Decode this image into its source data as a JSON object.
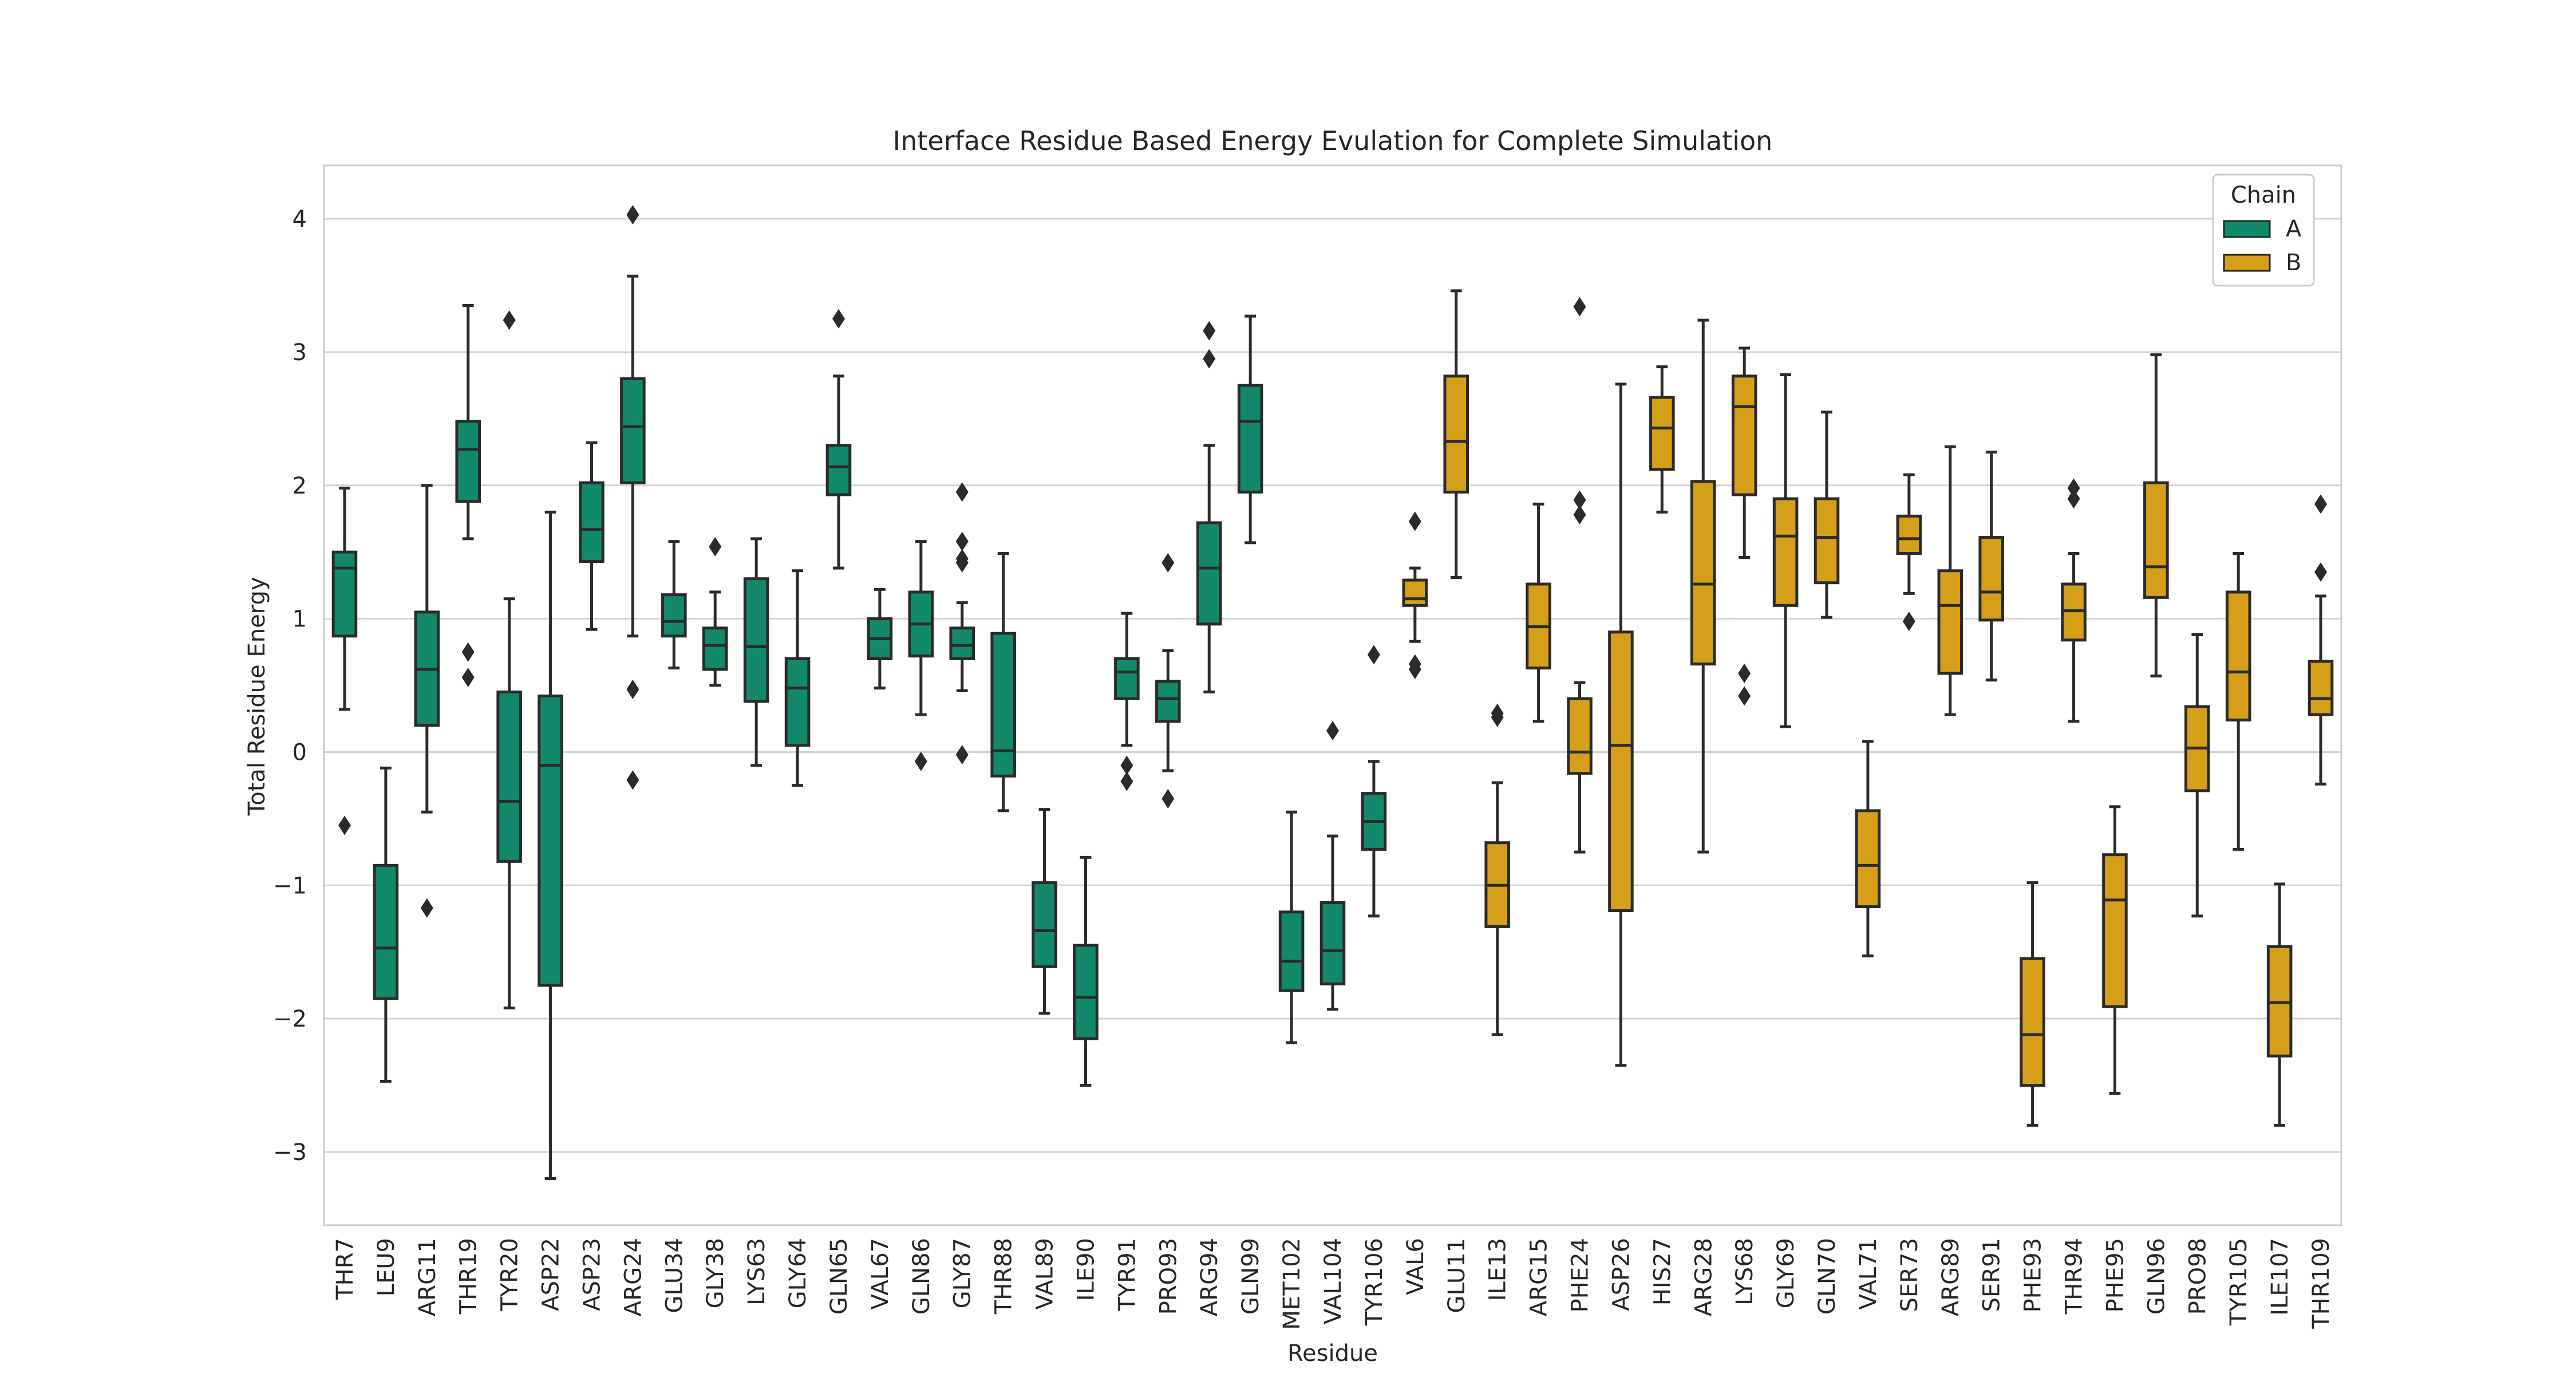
{
  "chart_data": {
    "type": "boxplot",
    "title": "Interface Residue Based Energy Evulation for Complete Simulation",
    "xlabel": "Residue",
    "ylabel": "Total Residue Energy",
    "ylim": [
      -3.55,
      4.4
    ],
    "yticks": [
      -3,
      -2,
      -1,
      0,
      1,
      2,
      3,
      4
    ],
    "grid": "horizontal",
    "legend": {
      "title": "Chain",
      "position": "top-right",
      "entries": [
        {
          "label": "A",
          "color": "#11896a"
        },
        {
          "label": "B",
          "color": "#d59f1a"
        }
      ]
    },
    "series": [
      {
        "name": "A",
        "color": "#11896a"
      },
      {
        "name": "B",
        "color": "#d59f1a"
      }
    ],
    "categories": [
      "THR7",
      "LEU9",
      "ARG11",
      "THR19",
      "TYR20",
      "ASP22",
      "ASP23",
      "ARG24",
      "GLU34",
      "GLY38",
      "LYS63",
      "GLY64",
      "GLN65",
      "VAL67",
      "GLN86",
      "GLY87",
      "THR88",
      "VAL89",
      "ILE90",
      "TYR91",
      "PRO93",
      "ARG94",
      "GLN99",
      "MET102",
      "VAL104",
      "TYR106",
      "VAL6",
      "GLU11",
      "ILE13",
      "ARG15",
      "PHE24",
      "ASP26",
      "HIS27",
      "ARG28",
      "LYS68",
      "GLY69",
      "GLN70",
      "VAL71",
      "SER73",
      "ARG89",
      "SER91",
      "PHE93",
      "THR94",
      "PHE95",
      "GLN96",
      "PRO98",
      "TYR105",
      "ILE107",
      "THR109"
    ],
    "boxes": [
      {
        "residue": "THR7",
        "chain": "A",
        "whislo": 0.32,
        "q1": 0.87,
        "med": 1.38,
        "q3": 1.5,
        "whishi": 1.98,
        "fliers": [
          -0.55
        ]
      },
      {
        "residue": "LEU9",
        "chain": "A",
        "whislo": -2.47,
        "q1": -1.85,
        "med": -1.47,
        "q3": -0.85,
        "whishi": -0.12,
        "fliers": []
      },
      {
        "residue": "ARG11",
        "chain": "A",
        "whislo": -0.45,
        "q1": 0.2,
        "med": 0.62,
        "q3": 1.05,
        "whishi": 2.0,
        "fliers": [
          -1.17
        ]
      },
      {
        "residue": "THR19",
        "chain": "A",
        "whislo": 1.6,
        "q1": 1.88,
        "med": 2.27,
        "q3": 2.48,
        "whishi": 3.35,
        "fliers": [
          0.75,
          0.56
        ]
      },
      {
        "residue": "TYR20",
        "chain": "A",
        "whislo": -1.92,
        "q1": -0.82,
        "med": -0.37,
        "q3": 0.45,
        "whishi": 1.15,
        "fliers": [
          3.24
        ]
      },
      {
        "residue": "ASP22",
        "chain": "A",
        "whislo": -3.2,
        "q1": -1.75,
        "med": -0.1,
        "q3": 0.42,
        "whishi": 1.8,
        "fliers": []
      },
      {
        "residue": "ASP23",
        "chain": "A",
        "whislo": 0.92,
        "q1": 1.43,
        "med": 1.67,
        "q3": 2.02,
        "whishi": 2.32,
        "fliers": []
      },
      {
        "residue": "ARG24",
        "chain": "A",
        "whislo": 0.87,
        "q1": 2.02,
        "med": 2.44,
        "q3": 2.8,
        "whishi": 3.57,
        "fliers": [
          4.03,
          0.47,
          -0.21
        ]
      },
      {
        "residue": "GLU34",
        "chain": "A",
        "whislo": 0.63,
        "q1": 0.87,
        "med": 0.98,
        "q3": 1.18,
        "whishi": 1.58,
        "fliers": []
      },
      {
        "residue": "GLY38",
        "chain": "A",
        "whislo": 0.5,
        "q1": 0.62,
        "med": 0.8,
        "q3": 0.93,
        "whishi": 1.2,
        "fliers": [
          1.54
        ]
      },
      {
        "residue": "LYS63",
        "chain": "A",
        "whislo": -0.1,
        "q1": 0.38,
        "med": 0.79,
        "q3": 1.3,
        "whishi": 1.6,
        "fliers": []
      },
      {
        "residue": "GLY64",
        "chain": "A",
        "whislo": -0.25,
        "q1": 0.05,
        "med": 0.48,
        "q3": 0.7,
        "whishi": 1.36,
        "fliers": []
      },
      {
        "residue": "GLN65",
        "chain": "A",
        "whislo": 1.38,
        "q1": 1.93,
        "med": 2.14,
        "q3": 2.3,
        "whishi": 2.82,
        "fliers": [
          3.25
        ]
      },
      {
        "residue": "VAL67",
        "chain": "A",
        "whislo": 0.48,
        "q1": 0.7,
        "med": 0.85,
        "q3": 1.0,
        "whishi": 1.22,
        "fliers": []
      },
      {
        "residue": "GLN86",
        "chain": "A",
        "whislo": 0.28,
        "q1": 0.72,
        "med": 0.96,
        "q3": 1.2,
        "whishi": 1.58,
        "fliers": [
          -0.07
        ]
      },
      {
        "residue": "GLY87",
        "chain": "A",
        "whislo": 0.46,
        "q1": 0.7,
        "med": 0.8,
        "q3": 0.93,
        "whishi": 1.12,
        "fliers": [
          1.95,
          1.58,
          1.45,
          1.42,
          -0.02
        ]
      },
      {
        "residue": "THR88",
        "chain": "A",
        "whislo": -0.44,
        "q1": -0.18,
        "med": 0.01,
        "q3": 0.89,
        "whishi": 1.49,
        "fliers": []
      },
      {
        "residue": "VAL89",
        "chain": "A",
        "whislo": -1.96,
        "q1": -1.61,
        "med": -1.34,
        "q3": -0.98,
        "whishi": -0.43,
        "fliers": []
      },
      {
        "residue": "ILE90",
        "chain": "A",
        "whislo": -2.5,
        "q1": -2.15,
        "med": -1.84,
        "q3": -1.45,
        "whishi": -0.79,
        "fliers": []
      },
      {
        "residue": "TYR91",
        "chain": "A",
        "whislo": 0.05,
        "q1": 0.4,
        "med": 0.6,
        "q3": 0.7,
        "whishi": 1.04,
        "fliers": [
          -0.1,
          -0.22
        ]
      },
      {
        "residue": "PRO93",
        "chain": "A",
        "whislo": -0.14,
        "q1": 0.23,
        "med": 0.4,
        "q3": 0.53,
        "whishi": 0.76,
        "fliers": [
          1.42,
          -0.35
        ]
      },
      {
        "residue": "ARG94",
        "chain": "A",
        "whislo": 0.45,
        "q1": 0.96,
        "med": 1.38,
        "q3": 1.72,
        "whishi": 2.3,
        "fliers": [
          3.16,
          2.95
        ]
      },
      {
        "residue": "GLN99",
        "chain": "A",
        "whislo": 1.57,
        "q1": 1.95,
        "med": 2.48,
        "q3": 2.75,
        "whishi": 3.27,
        "fliers": []
      },
      {
        "residue": "MET102",
        "chain": "A",
        "whislo": -2.18,
        "q1": -1.79,
        "med": -1.57,
        "q3": -1.2,
        "whishi": -0.45,
        "fliers": []
      },
      {
        "residue": "VAL104",
        "chain": "A",
        "whislo": -1.93,
        "q1": -1.74,
        "med": -1.49,
        "q3": -1.13,
        "whishi": -0.63,
        "fliers": [
          0.16
        ]
      },
      {
        "residue": "TYR106",
        "chain": "A",
        "whislo": -1.23,
        "q1": -0.73,
        "med": -0.52,
        "q3": -0.31,
        "whishi": -0.07,
        "fliers": [
          0.73
        ]
      },
      {
        "residue": "VAL6",
        "chain": "B",
        "whislo": 0.83,
        "q1": 1.1,
        "med": 1.15,
        "q3": 1.29,
        "whishi": 1.38,
        "fliers": [
          1.73,
          0.66,
          0.62
        ]
      },
      {
        "residue": "GLU11",
        "chain": "B",
        "whislo": 1.31,
        "q1": 1.95,
        "med": 2.33,
        "q3": 2.82,
        "whishi": 3.46,
        "fliers": []
      },
      {
        "residue": "ILE13",
        "chain": "B",
        "whislo": -2.12,
        "q1": -1.31,
        "med": -1.0,
        "q3": -0.68,
        "whishi": -0.23,
        "fliers": [
          0.29,
          0.26
        ]
      },
      {
        "residue": "ARG15",
        "chain": "B",
        "whislo": 0.23,
        "q1": 0.63,
        "med": 0.94,
        "q3": 1.26,
        "whishi": 1.86,
        "fliers": []
      },
      {
        "residue": "PHE24",
        "chain": "B",
        "whislo": -0.75,
        "q1": -0.16,
        "med": 0.0,
        "q3": 0.4,
        "whishi": 0.52,
        "fliers": [
          3.34,
          1.89,
          1.78
        ]
      },
      {
        "residue": "ASP26",
        "chain": "B",
        "whislo": -2.35,
        "q1": -1.19,
        "med": 0.05,
        "q3": 0.9,
        "whishi": 2.76,
        "fliers": []
      },
      {
        "residue": "HIS27",
        "chain": "B",
        "whislo": 1.8,
        "q1": 2.12,
        "med": 2.43,
        "q3": 2.66,
        "whishi": 2.89,
        "fliers": []
      },
      {
        "residue": "ARG28",
        "chain": "B",
        "whislo": -0.75,
        "q1": 0.66,
        "med": 1.26,
        "q3": 2.03,
        "whishi": 3.24,
        "fliers": []
      },
      {
        "residue": "LYS68",
        "chain": "B",
        "whislo": 1.46,
        "q1": 1.93,
        "med": 2.59,
        "q3": 2.82,
        "whishi": 3.03,
        "fliers": [
          0.59,
          0.42
        ]
      },
      {
        "residue": "GLY69",
        "chain": "B",
        "whislo": 0.19,
        "q1": 1.1,
        "med": 1.62,
        "q3": 1.9,
        "whishi": 2.83,
        "fliers": []
      },
      {
        "residue": "GLN70",
        "chain": "B",
        "whislo": 1.01,
        "q1": 1.27,
        "med": 1.61,
        "q3": 1.9,
        "whishi": 2.55,
        "fliers": []
      },
      {
        "residue": "VAL71",
        "chain": "B",
        "whislo": -1.53,
        "q1": -1.16,
        "med": -0.85,
        "q3": -0.44,
        "whishi": 0.08,
        "fliers": []
      },
      {
        "residue": "SER73",
        "chain": "B",
        "whislo": 1.19,
        "q1": 1.49,
        "med": 1.6,
        "q3": 1.77,
        "whishi": 2.08,
        "fliers": [
          0.98
        ]
      },
      {
        "residue": "ARG89",
        "chain": "B",
        "whislo": 0.28,
        "q1": 0.59,
        "med": 1.1,
        "q3": 1.36,
        "whishi": 2.29,
        "fliers": []
      },
      {
        "residue": "SER91",
        "chain": "B",
        "whislo": 0.54,
        "q1": 0.99,
        "med": 1.2,
        "q3": 1.61,
        "whishi": 2.25,
        "fliers": []
      },
      {
        "residue": "PHE93",
        "chain": "B",
        "whislo": -2.8,
        "q1": -2.5,
        "med": -2.12,
        "q3": -1.55,
        "whishi": -0.98,
        "fliers": []
      },
      {
        "residue": "THR94",
        "chain": "B",
        "whislo": 0.23,
        "q1": 0.84,
        "med": 1.06,
        "q3": 1.26,
        "whishi": 1.49,
        "fliers": [
          1.98,
          1.9
        ]
      },
      {
        "residue": "PHE95",
        "chain": "B",
        "whislo": -2.56,
        "q1": -1.91,
        "med": -1.11,
        "q3": -0.77,
        "whishi": -0.41,
        "fliers": []
      },
      {
        "residue": "GLN96",
        "chain": "B",
        "whislo": 0.57,
        "q1": 1.16,
        "med": 1.39,
        "q3": 2.02,
        "whishi": 2.98,
        "fliers": []
      },
      {
        "residue": "PRO98",
        "chain": "B",
        "whislo": -1.23,
        "q1": -0.29,
        "med": 0.03,
        "q3": 0.34,
        "whishi": 0.88,
        "fliers": []
      },
      {
        "residue": "TYR105",
        "chain": "B",
        "whislo": -0.73,
        "q1": 0.24,
        "med": 0.6,
        "q3": 1.2,
        "whishi": 1.49,
        "fliers": []
      },
      {
        "residue": "ILE107",
        "chain": "B",
        "whislo": -2.8,
        "q1": -2.28,
        "med": -1.88,
        "q3": -1.46,
        "whishi": -0.99,
        "fliers": []
      },
      {
        "residue": "THR109",
        "chain": "B",
        "whislo": -0.24,
        "q1": 0.28,
        "med": 0.4,
        "q3": 0.68,
        "whishi": 1.17,
        "fliers": [
          1.86,
          1.35
        ]
      }
    ]
  }
}
